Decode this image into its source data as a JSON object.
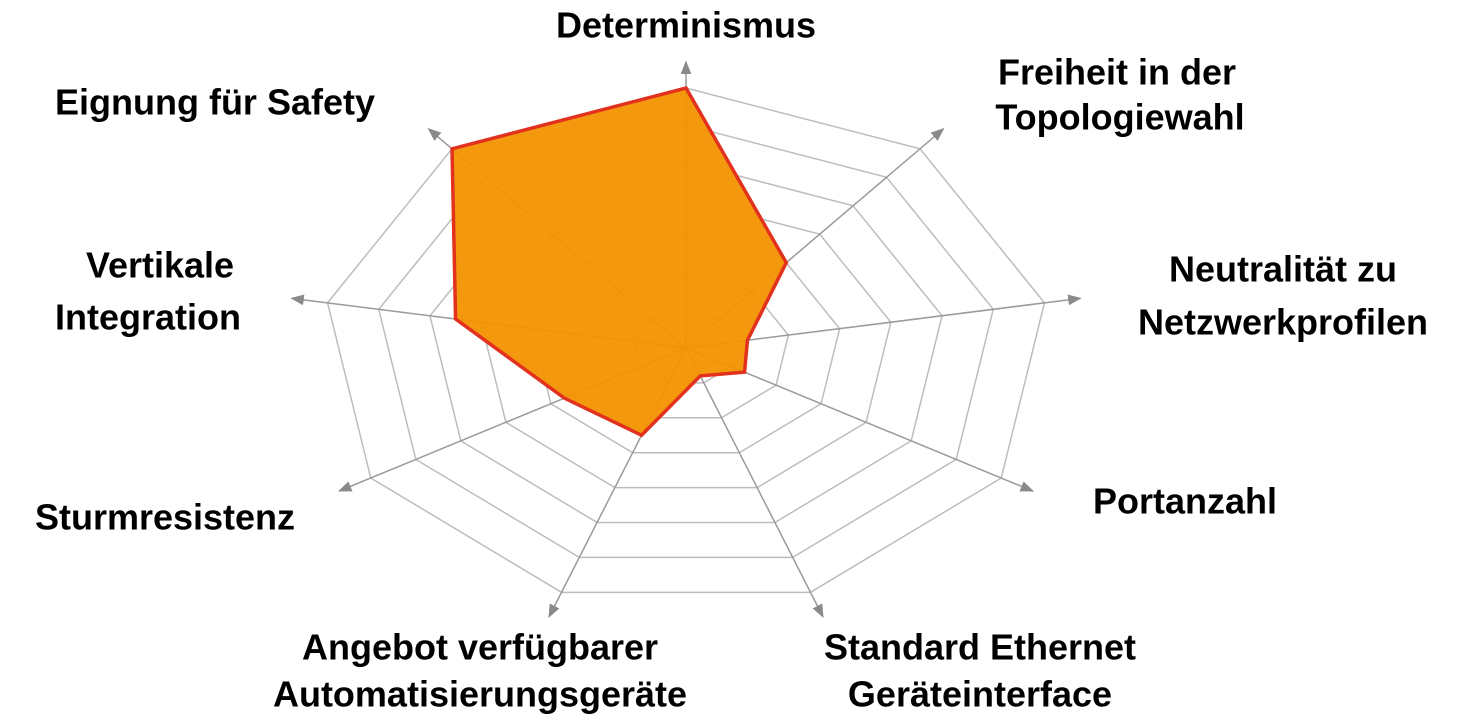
{
  "chart_data": {
    "type": "radar",
    "categories": [
      [
        "Determinismus"
      ],
      [
        "Freiheit in der",
        "Topologiewahl"
      ],
      [
        "Neutralität zu",
        "Netzwerkprofilen"
      ],
      [
        "Portanzahl"
      ],
      [
        "Standard Ethernet",
        "Geräteinterface"
      ],
      [
        "Angebot verfügbarer",
        "Automatisierungsgeräte"
      ],
      [
        "Sturmresistenz"
      ],
      [
        "Vertikale",
        "Integration"
      ],
      [
        "Eignung für Safety"
      ]
    ],
    "values": [
      7,
      3,
      1.2,
      1.3,
      0.8,
      2.5,
      2.7,
      4.5,
      7
    ],
    "color": "#f39200",
    "edge_color": "#e2321e",
    "rlim": [
      0,
      7
    ],
    "rticks": [
      1,
      2,
      3,
      4,
      5,
      6,
      7
    ],
    "grid": true
  }
}
